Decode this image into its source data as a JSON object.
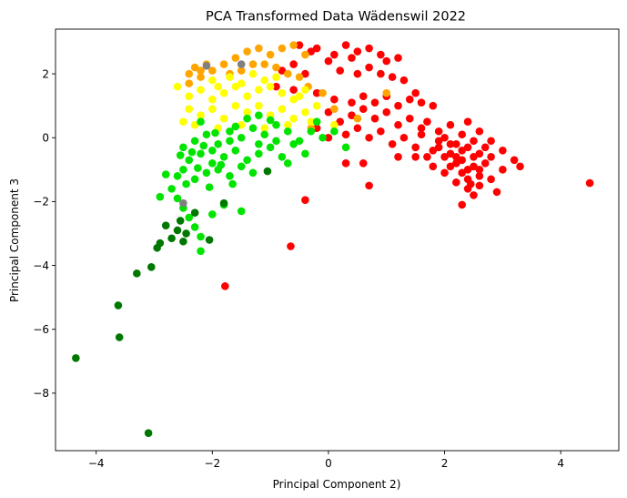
{
  "chart_data": {
    "type": "scatter",
    "title": "PCA Transformed Data Wädenswil 2022",
    "xlabel": "Principal Component 2)",
    "ylabel": "Principal Component 3",
    "xlim": [
      -4.7,
      5.0
    ],
    "ylim": [
      -9.8,
      3.4
    ],
    "xticks": [
      -4,
      -2,
      0,
      2,
      4
    ],
    "xtick_labels": [
      "−4",
      "−2",
      "0",
      "2",
      "4"
    ],
    "yticks": [
      -8,
      -6,
      -4,
      -2,
      0,
      2
    ],
    "ytick_labels": [
      "−8",
      "−6",
      "−4",
      "−2",
      "0",
      "2"
    ],
    "grid": false,
    "legend": "none",
    "series": [
      {
        "color": "#ff0000",
        "points": [
          [
            -0.5,
            2.9
          ],
          [
            -0.3,
            2.7
          ],
          [
            -0.2,
            2.8
          ],
          [
            0.1,
            2.6
          ],
          [
            0.3,
            2.9
          ],
          [
            0.5,
            2.7
          ],
          [
            0.7,
            2.8
          ],
          [
            0.9,
            2.6
          ],
          [
            1.0,
            2.4
          ],
          [
            1.2,
            2.5
          ],
          [
            0.4,
            2.5
          ],
          [
            -0.8,
            2.1
          ],
          [
            -0.6,
            2.3
          ],
          [
            -0.4,
            2.0
          ],
          [
            0.2,
            2.1
          ],
          [
            0.5,
            2.0
          ],
          [
            0.7,
            2.2
          ],
          [
            0.9,
            2.0
          ],
          [
            1.1,
            1.9
          ],
          [
            1.3,
            1.8
          ],
          [
            0.0,
            2.4
          ],
          [
            -0.9,
            1.6
          ],
          [
            -0.6,
            1.5
          ],
          [
            -0.2,
            1.4
          ],
          [
            0.1,
            1.2
          ],
          [
            0.4,
            1.1
          ],
          [
            0.6,
            1.3
          ],
          [
            0.8,
            1.1
          ],
          [
            1.0,
            1.3
          ],
          [
            1.2,
            1.0
          ],
          [
            1.4,
            1.2
          ],
          [
            1.5,
            1.4
          ],
          [
            1.6,
            1.1
          ],
          [
            1.8,
            1.0
          ],
          [
            0.0,
            0.8
          ],
          [
            0.2,
            0.5
          ],
          [
            0.4,
            0.7
          ],
          [
            0.6,
            0.9
          ],
          [
            0.8,
            0.6
          ],
          [
            1.0,
            0.8
          ],
          [
            1.2,
            0.4
          ],
          [
            1.4,
            0.6
          ],
          [
            1.6,
            0.3
          ],
          [
            1.7,
            0.5
          ],
          [
            1.9,
            0.2
          ],
          [
            2.1,
            0.4
          ],
          [
            2.3,
            0.1
          ],
          [
            2.4,
            0.5
          ],
          [
            2.6,
            0.2
          ],
          [
            2.8,
            -0.1
          ],
          [
            3.0,
            -0.4
          ],
          [
            3.2,
            -0.7
          ],
          [
            3.3,
            -0.9
          ],
          [
            -0.2,
            0.3
          ],
          [
            0.0,
            0.0
          ],
          [
            0.3,
            0.1
          ],
          [
            0.5,
            0.3
          ],
          [
            0.7,
            0.0
          ],
          [
            0.9,
            0.2
          ],
          [
            1.1,
            -0.2
          ],
          [
            1.3,
            0.0
          ],
          [
            1.5,
            -0.3
          ],
          [
            1.6,
            0.1
          ],
          [
            1.8,
            -0.4
          ],
          [
            1.9,
            -0.1
          ],
          [
            2.0,
            -0.6
          ],
          [
            2.1,
            -0.2
          ],
          [
            2.2,
            -0.8
          ],
          [
            2.3,
            -0.4
          ],
          [
            2.4,
            -1.0
          ],
          [
            2.5,
            -0.6
          ],
          [
            2.6,
            -1.2
          ],
          [
            2.7,
            -0.8
          ],
          [
            2.2,
            -1.4
          ],
          [
            2.4,
            -1.6
          ],
          [
            2.5,
            -1.8
          ],
          [
            2.3,
            -2.1
          ],
          [
            2.6,
            -1.5
          ],
          [
            2.8,
            -1.3
          ],
          [
            3.0,
            -1.0
          ],
          [
            2.9,
            -1.7
          ],
          [
            1.9,
            -0.3
          ],
          [
            2.0,
            0.0
          ],
          [
            2.1,
            -0.5
          ],
          [
            2.2,
            -0.2
          ],
          [
            2.3,
            -0.7
          ],
          [
            2.4,
            -0.3
          ],
          [
            2.5,
            -0.9
          ],
          [
            2.2,
            -0.6
          ],
          [
            2.3,
            -1.1
          ],
          [
            2.1,
            -0.9
          ],
          [
            2.4,
            -1.3
          ],
          [
            2.0,
            -1.1
          ],
          [
            1.8,
            -0.9
          ],
          [
            1.7,
            -0.6
          ],
          [
            2.5,
            -0.1
          ],
          [
            2.6,
            -0.5
          ],
          [
            2.7,
            -0.3
          ],
          [
            2.8,
            -0.6
          ],
          [
            2.6,
            -1.0
          ],
          [
            2.45,
            -1.45
          ],
          [
            0.3,
            -0.8
          ],
          [
            0.6,
            -0.8
          ],
          [
            0.7,
            -1.5
          ],
          [
            1.2,
            -0.6
          ],
          [
            1.5,
            -0.6
          ],
          [
            -0.4,
            -1.95
          ],
          [
            -0.65,
            -3.4
          ],
          [
            -1.78,
            -4.65
          ],
          [
            4.5,
            -1.42
          ]
        ]
      },
      {
        "color": "#ffa500",
        "points": [
          [
            -2.4,
            2.0
          ],
          [
            -2.3,
            2.2
          ],
          [
            -2.2,
            2.1
          ],
          [
            -2.1,
            2.3
          ],
          [
            -2.0,
            2.1
          ],
          [
            -2.2,
            1.9
          ],
          [
            -2.4,
            1.7
          ],
          [
            -1.8,
            2.3
          ],
          [
            -1.6,
            2.5
          ],
          [
            -1.4,
            2.7
          ],
          [
            -1.2,
            2.8
          ],
          [
            -1.0,
            2.6
          ],
          [
            -0.8,
            2.8
          ],
          [
            -0.6,
            2.9
          ],
          [
            -0.4,
            2.6
          ],
          [
            -1.1,
            2.3
          ],
          [
            -0.9,
            2.2
          ],
          [
            -0.7,
            2.0
          ],
          [
            -1.5,
            2.1
          ],
          [
            -1.3,
            2.3
          ],
          [
            -1.7,
            2.0
          ],
          [
            -0.35,
            1.6
          ],
          [
            -0.5,
            1.9
          ],
          [
            -0.1,
            1.4
          ],
          [
            0.1,
            0.9
          ],
          [
            0.5,
            0.6
          ],
          [
            1.0,
            1.4
          ],
          [
            -0.3,
            0.3
          ]
        ]
      },
      {
        "color": "#ffff00",
        "points": [
          [
            -2.4,
            1.3
          ],
          [
            -2.2,
            1.5
          ],
          [
            -2.0,
            1.2
          ],
          [
            -1.8,
            1.4
          ],
          [
            -1.6,
            1.6
          ],
          [
            -1.4,
            1.3
          ],
          [
            -1.2,
            1.5
          ],
          [
            -1.0,
            1.6
          ],
          [
            -0.8,
            1.4
          ],
          [
            -0.6,
            1.2
          ],
          [
            -0.4,
            1.5
          ],
          [
            -2.4,
            0.9
          ],
          [
            -2.2,
            0.7
          ],
          [
            -2.0,
            0.9
          ],
          [
            -1.8,
            0.6
          ],
          [
            -1.6,
            1.0
          ],
          [
            -1.4,
            0.8
          ],
          [
            -1.2,
            1.0
          ],
          [
            -1.0,
            0.7
          ],
          [
            -0.8,
            0.9
          ],
          [
            -0.6,
            0.6
          ],
          [
            -0.4,
            0.8
          ],
          [
            -0.2,
            1.0
          ],
          [
            -2.5,
            0.5
          ],
          [
            -2.3,
            0.4
          ],
          [
            -1.9,
            0.3
          ],
          [
            -1.5,
            0.4
          ],
          [
            -1.1,
            0.3
          ],
          [
            -0.7,
            0.4
          ],
          [
            -0.3,
            0.5
          ],
          [
            0.1,
            0.4
          ],
          [
            -2.6,
            1.6
          ],
          [
            -2.0,
            1.8
          ],
          [
            -1.7,
            1.9
          ],
          [
            -1.3,
            2.0
          ],
          [
            -0.9,
            1.9
          ],
          [
            -1.9,
            1.6
          ],
          [
            -1.5,
            1.7
          ],
          [
            -1.1,
            1.8
          ],
          [
            -0.5,
            1.3
          ]
        ]
      },
      {
        "color": "#00e400",
        "points": [
          [
            -2.5,
            -0.3
          ],
          [
            -2.3,
            -0.1
          ],
          [
            -2.1,
            0.1
          ],
          [
            -1.9,
            -0.2
          ],
          [
            -1.7,
            0.2
          ],
          [
            -1.5,
            0.0
          ],
          [
            -1.3,
            0.3
          ],
          [
            -1.1,
            0.1
          ],
          [
            -0.9,
            0.4
          ],
          [
            -0.7,
            0.2
          ],
          [
            -0.5,
            -0.1
          ],
          [
            -0.3,
            0.2
          ],
          [
            -0.1,
            0.0
          ],
          [
            0.1,
            0.2
          ],
          [
            -2.4,
            -0.7
          ],
          [
            -2.2,
            -0.5
          ],
          [
            -2.0,
            -0.8
          ],
          [
            -1.8,
            -0.6
          ],
          [
            -1.6,
            -0.4
          ],
          [
            -1.4,
            -0.7
          ],
          [
            -1.2,
            -0.5
          ],
          [
            -1.0,
            -0.3
          ],
          [
            -0.8,
            -0.6
          ],
          [
            -0.6,
            -0.2
          ],
          [
            -2.6,
            -1.2
          ],
          [
            -2.5,
            -1.0
          ],
          [
            -2.3,
            -1.3
          ],
          [
            -2.1,
            -1.1
          ],
          [
            -1.9,
            -1.0
          ],
          [
            -1.7,
            -1.2
          ],
          [
            -1.5,
            -0.9
          ],
          [
            -1.3,
            -1.1
          ],
          [
            -2.7,
            -1.6
          ],
          [
            -2.6,
            -1.9
          ],
          [
            -2.5,
            -2.2
          ],
          [
            -2.4,
            -2.5
          ],
          [
            -2.3,
            -2.8
          ],
          [
            -2.2,
            -3.1
          ],
          [
            -2.0,
            -2.4
          ],
          [
            -1.8,
            -2.1
          ],
          [
            -1.5,
            -2.3
          ],
          [
            -2.2,
            -3.55
          ],
          [
            -2.8,
            -1.15
          ],
          [
            -2.9,
            -1.85
          ],
          [
            -2.0,
            -0.4
          ],
          [
            -1.7,
            -0.1
          ],
          [
            -1.4,
            0.6
          ],
          [
            -1.2,
            0.7
          ],
          [
            -0.7,
            -0.8
          ],
          [
            -0.4,
            -0.5
          ],
          [
            -0.2,
            0.5
          ],
          [
            0.3,
            -0.3
          ],
          [
            -2.35,
            -0.45
          ],
          [
            -2.15,
            -0.25
          ],
          [
            -1.95,
            0.15
          ],
          [
            -2.45,
            -1.45
          ],
          [
            -2.25,
            -0.95
          ],
          [
            -2.05,
            -1.55
          ],
          [
            -1.85,
            -0.85
          ],
          [
            -1.65,
            -1.45
          ],
          [
            -2.55,
            -0.55
          ],
          [
            -2.2,
            0.5
          ],
          [
            -1.6,
            0.35
          ],
          [
            -1.0,
            0.55
          ],
          [
            -1.2,
            -0.2
          ],
          [
            -0.9,
            -0.1
          ]
        ]
      },
      {
        "color": "#007800",
        "points": [
          [
            -4.35,
            -6.9
          ],
          [
            -3.1,
            -9.25
          ],
          [
            -3.6,
            -6.25
          ],
          [
            -3.62,
            -5.25
          ],
          [
            -3.3,
            -4.25
          ],
          [
            -3.05,
            -4.05
          ],
          [
            -2.95,
            -3.45
          ],
          [
            -2.9,
            -3.3
          ],
          [
            -2.8,
            -2.75
          ],
          [
            -2.7,
            -3.15
          ],
          [
            -2.6,
            -2.9
          ],
          [
            -2.55,
            -2.6
          ],
          [
            -2.5,
            -3.25
          ],
          [
            -2.45,
            -3.0
          ],
          [
            -2.3,
            -2.35
          ],
          [
            -2.05,
            -3.2
          ],
          [
            -1.8,
            -2.05
          ],
          [
            -1.05,
            -1.05
          ]
        ]
      },
      {
        "color": "#808080",
        "points": [
          [
            -1.5,
            2.3
          ],
          [
            -2.5,
            -2.05
          ],
          [
            -2.1,
            2.25
          ]
        ]
      }
    ]
  }
}
